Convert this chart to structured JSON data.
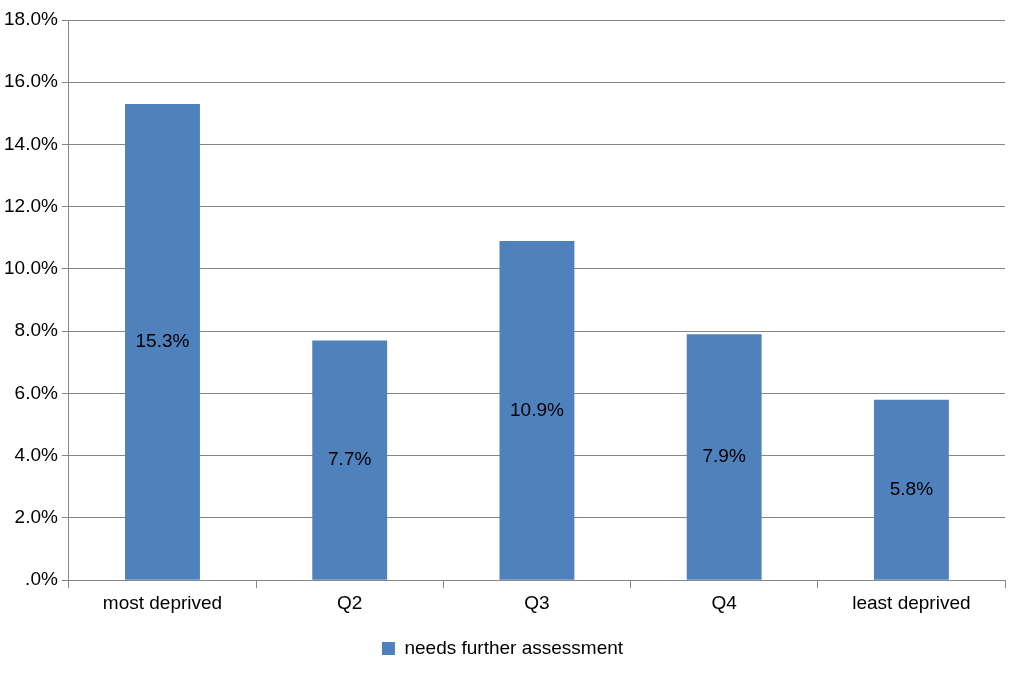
{
  "chart_data": {
    "type": "bar",
    "categories": [
      "most deprived",
      "Q2",
      "Q3",
      "Q4",
      "least deprived"
    ],
    "series": [
      {
        "name": "needs further assessment",
        "color": "#4f81bd",
        "values": [
          15.3,
          7.7,
          10.9,
          7.9,
          5.8
        ],
        "value_labels": [
          "15.3%",
          "7.7%",
          "10.9%",
          "7.9%",
          "5.8%"
        ]
      }
    ],
    "ylim": [
      0,
      18
    ],
    "yticks": [
      {
        "value": 0,
        "label": ".0%"
      },
      {
        "value": 2,
        "label": "2.0%"
      },
      {
        "value": 4,
        "label": "4.0%"
      },
      {
        "value": 6,
        "label": "6.0%"
      },
      {
        "value": 8,
        "label": "8.0%"
      },
      {
        "value": 10,
        "label": "10.0%"
      },
      {
        "value": 12,
        "label": "12.0%"
      },
      {
        "value": 14,
        "label": "14.0%"
      },
      {
        "value": 16,
        "label": "16.0%"
      },
      {
        "value": 18,
        "label": "18.0%"
      }
    ],
    "grid": "y",
    "legend": "bottom"
  }
}
